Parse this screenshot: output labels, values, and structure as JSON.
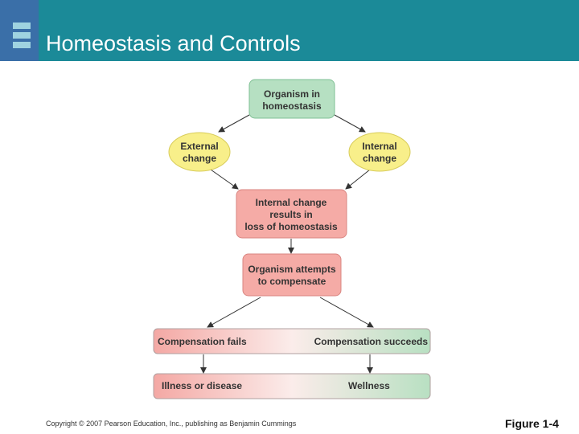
{
  "header": {
    "title": "Homeostasis and Controls"
  },
  "nodes": [
    {
      "lines": [
        "Organism in",
        "homeostasis"
      ]
    },
    {
      "lines": [
        "External",
        "change"
      ]
    },
    {
      "lines": [
        "Internal",
        "change"
      ]
    },
    {
      "lines": [
        "Internal change",
        "results in",
        "loss of homeostasis"
      ]
    },
    {
      "lines": [
        "Organism attempts",
        "to compensate"
      ]
    }
  ],
  "outcomes": [
    {
      "left": "Compensation fails",
      "right": "Compensation succeeds"
    },
    {
      "left": "Illness or disease",
      "right": "Wellness"
    }
  ],
  "footer": {
    "copyright": "Copyright © 2007 Pearson Education, Inc., publishing as Benjamin Cummings",
    "figure": "Figure 1-4"
  }
}
